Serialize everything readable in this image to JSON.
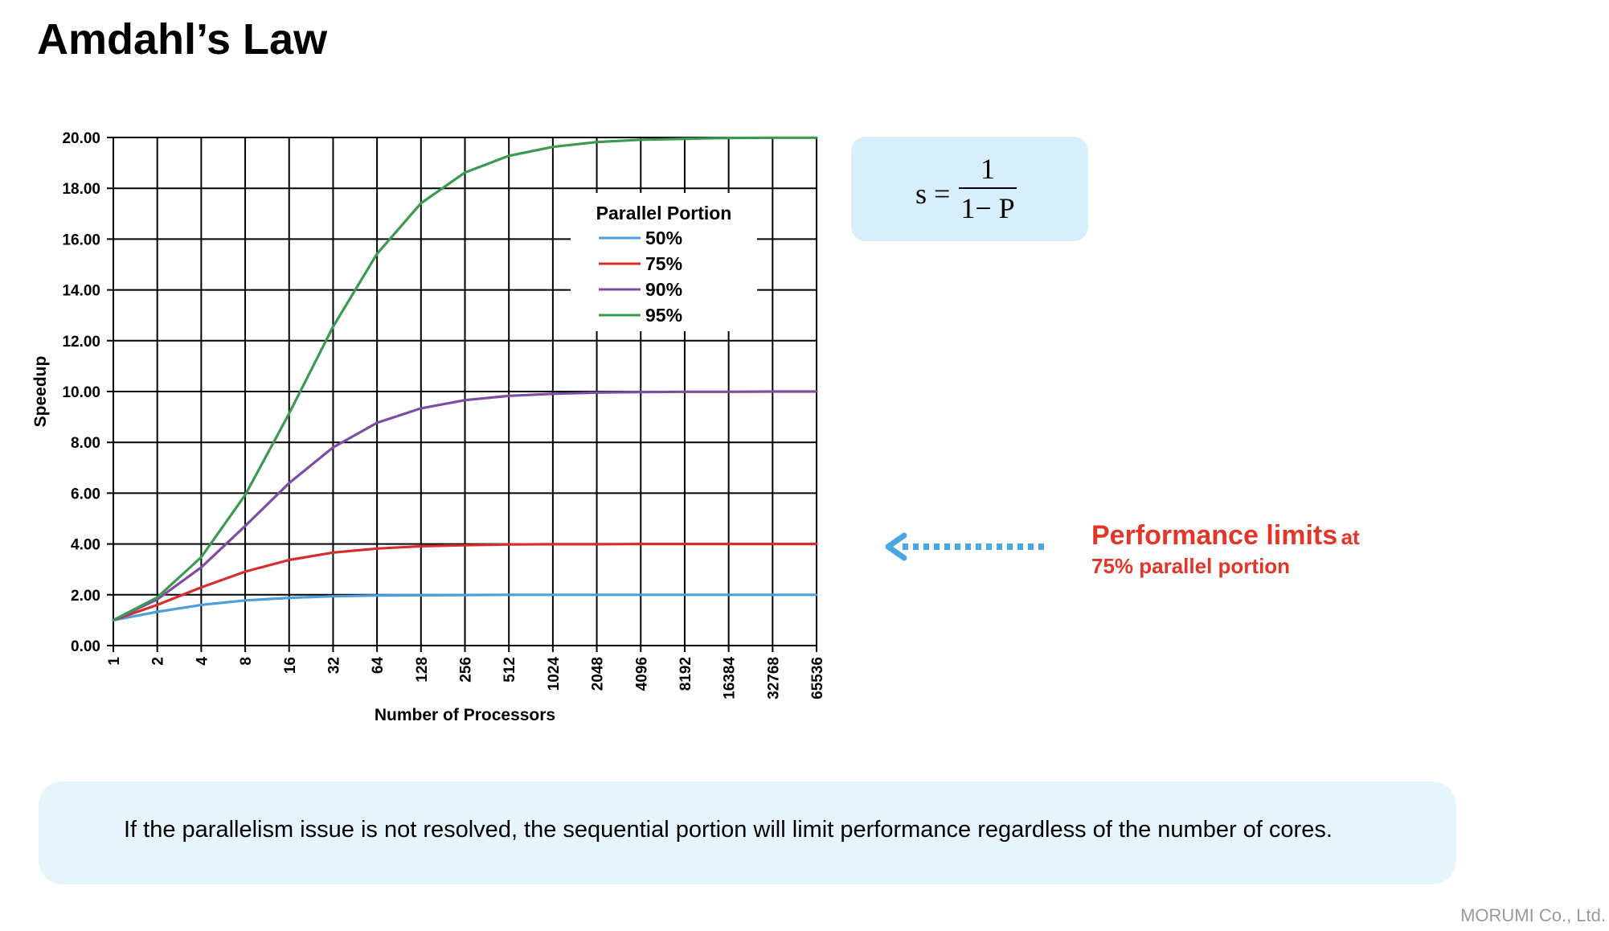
{
  "title": "Amdahl’s Law",
  "formula": {
    "lhs": "s =",
    "numerator": "1",
    "denominator": "1− P"
  },
  "callout": {
    "main": "Performance limits",
    "suffix": "at",
    "line2": "75% parallel portion",
    "color": "#e53528"
  },
  "arrow_color": "#4aa8e0",
  "note": "If the parallelism issue is not resolved, the sequential portion will limit performance regardless of the number of cores.",
  "footer": "MORUMI Co., Ltd.",
  "chart_data": {
    "type": "line",
    "xlabel": "Number of Processors",
    "ylabel": "Speedup",
    "x": [
      "1",
      "2",
      "4",
      "8",
      "16",
      "32",
      "64",
      "128",
      "256",
      "512",
      "1024",
      "2048",
      "4096",
      "8192",
      "16384",
      "32768",
      "65536"
    ],
    "ylim": [
      0,
      20
    ],
    "yticks": [
      "0.00",
      "2.00",
      "4.00",
      "6.00",
      "8.00",
      "10.00",
      "12.00",
      "14.00",
      "16.00",
      "18.00",
      "20.00"
    ],
    "grid": true,
    "legend": {
      "title": "Parallel Portion",
      "position": "top-right"
    },
    "series": [
      {
        "name": "50%",
        "color": "#4a9fdc",
        "values": [
          1.0,
          1.33,
          1.6,
          1.78,
          1.88,
          1.94,
          1.97,
          1.98,
          1.99,
          2.0,
          2.0,
          2.0,
          2.0,
          2.0,
          2.0,
          2.0,
          2.0
        ]
      },
      {
        "name": "75%",
        "color": "#d62e2e",
        "values": [
          1.0,
          1.6,
          2.29,
          2.91,
          3.37,
          3.66,
          3.82,
          3.91,
          3.95,
          3.98,
          3.99,
          3.99,
          4.0,
          4.0,
          4.0,
          4.0,
          4.0
        ]
      },
      {
        "name": "90%",
        "color": "#7e4da3",
        "values": [
          1.0,
          1.82,
          3.08,
          4.71,
          6.4,
          7.8,
          8.77,
          9.34,
          9.66,
          9.83,
          9.91,
          9.96,
          9.98,
          9.99,
          9.99,
          10.0,
          10.0
        ]
      },
      {
        "name": "95%",
        "color": "#3b9a4f",
        "values": [
          1.0,
          1.9,
          3.48,
          5.93,
          9.14,
          12.55,
          15.42,
          17.41,
          18.62,
          19.28,
          19.63,
          19.82,
          19.91,
          19.95,
          19.98,
          19.99,
          19.99
        ]
      }
    ]
  }
}
